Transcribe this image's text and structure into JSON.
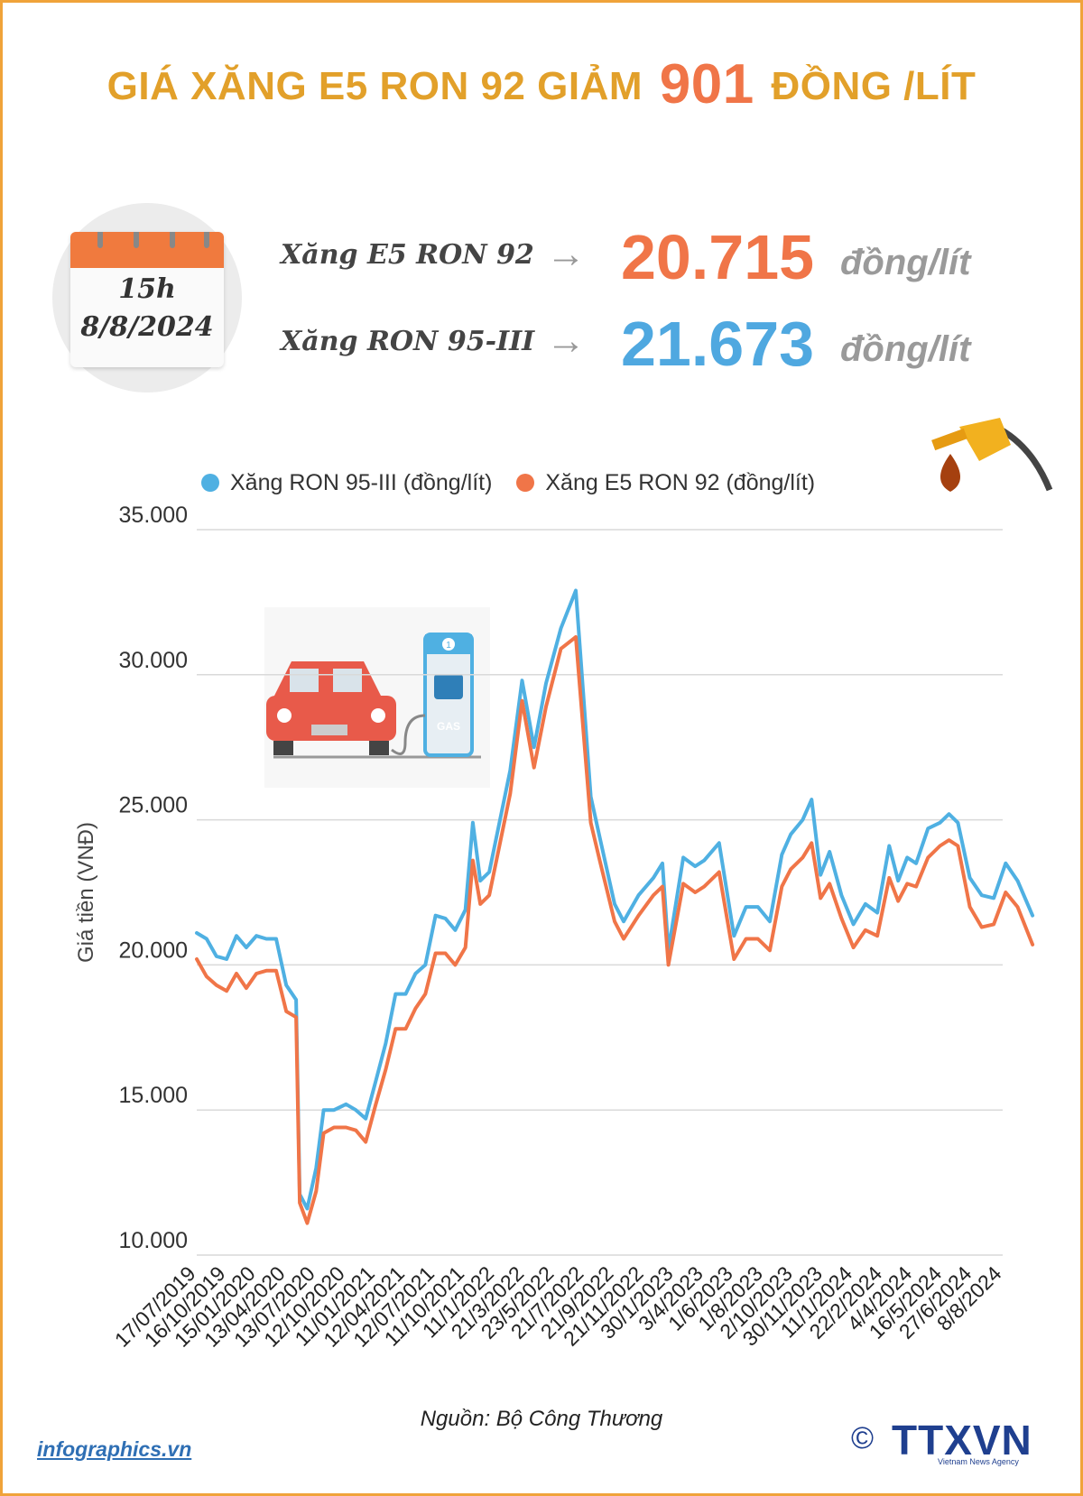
{
  "title": {
    "prefix": "GIÁ XĂNG E5 RON 92 GIẢM",
    "amount": "901",
    "suffix": "ĐỒNG /LÍT"
  },
  "calendar": {
    "time": "15h",
    "date": "8/8/2024"
  },
  "prices": [
    {
      "label": "Xăng E5 RON 92",
      "value": "20.715",
      "unit": "đồng/lít",
      "color": "#f07548"
    },
    {
      "label": "Xăng RON 95-III",
      "value": "21.673",
      "unit": "đồng/lít",
      "color": "#4fa8e0"
    }
  ],
  "icons": {
    "arrow": "right-arrow-icon",
    "calendar": "calendar-icon",
    "fuel_nozzle": "fuel-nozzle-icon",
    "car_pump": "car-at-gas-pump-icon"
  },
  "pump_label": "GAS",
  "pump_number": "1",
  "chart_data": {
    "type": "line",
    "ylabel": "Giá tiền (VNĐ)",
    "xlabel": "",
    "ylim": [
      10000,
      35000
    ],
    "yticks": [
      10000,
      15000,
      20000,
      25000,
      30000,
      35000
    ],
    "ytick_labels": [
      "10.000",
      "15.000",
      "20.000",
      "25.000",
      "30.000",
      "35.000"
    ],
    "grid": true,
    "legend_position": "top",
    "x_tick_labels": [
      "17/07/2019",
      "16/10/2019",
      "15/01/2020",
      "13/04/2020",
      "13/07/2020",
      "12/10/2020",
      "11/01/2021",
      "12/04/2021",
      "12/07/2021",
      "11/10/2021",
      "11/1/2022",
      "21/3/2022",
      "23/5/2022",
      "21/7/2022",
      "21/9/2022",
      "21/11/2022",
      "30/1/2023",
      "3/4/2023",
      "1/6/2023",
      "1/8/2023",
      "2/10/2023",
      "30/11/2023",
      "11/1/2024",
      "22/2/2024",
      "4/4/2024",
      "16/5/2024",
      "27/6/2024",
      "8/8/2024"
    ],
    "series": [
      {
        "name": "Xăng RON 95-III (đồng/lít)",
        "color": "#4fb0e2",
        "values": [
          21100,
          20900,
          20300,
          20200,
          21000,
          20600,
          21000,
          20900,
          20900,
          19300,
          18800,
          12100,
          11600,
          13000,
          15000,
          15000,
          15200,
          15000,
          14700,
          16000,
          17300,
          19000,
          19000,
          19700,
          20000,
          21700,
          21600,
          21200,
          21900,
          24900,
          22900,
          23200,
          26700,
          29800,
          27500,
          29700,
          31600,
          32900,
          25800,
          24400,
          22100,
          21500,
          22400,
          23000,
          23500,
          20500,
          23700,
          23400,
          23600,
          24200,
          21000,
          22000,
          22000,
          21500,
          23800,
          24500,
          25000,
          25700,
          23100,
          23900,
          22400,
          21400,
          22100,
          21800,
          24100,
          22900,
          23700,
          23500,
          24700,
          24900,
          25200,
          24900,
          23000,
          22400,
          22300,
          23500,
          22900,
          21700
        ],
        "x": [
          0,
          0.33,
          0.66,
          1,
          1.33,
          1.66,
          2,
          2.33,
          2.66,
          3,
          3.33,
          3.45,
          3.7,
          4,
          4.25,
          4.6,
          5,
          5.33,
          5.66,
          6,
          6.33,
          6.66,
          7,
          7.33,
          7.66,
          8,
          8.33,
          8.66,
          9,
          9.25,
          9.5,
          9.8,
          10.5,
          10.9,
          11.3,
          11.7,
          12.2,
          12.7,
          13.2,
          13.5,
          14,
          14.3,
          14.8,
          15.3,
          15.6,
          15.8,
          16.3,
          16.7,
          17,
          17.5,
          18,
          18.4,
          18.8,
          19.2,
          19.6,
          19.9,
          20.3,
          20.6,
          20.9,
          21.2,
          21.6,
          22,
          22.4,
          22.8,
          23.2,
          23.5,
          23.8,
          24.1,
          24.5,
          24.9,
          25.2,
          25.5,
          25.9,
          26.3,
          26.7,
          27.1,
          27.5,
          28
        ]
      },
      {
        "name": "Xăng E5 RON 92 (đồng/lít)",
        "color": "#f07548",
        "values": [
          20200,
          19600,
          19300,
          19100,
          19700,
          19200,
          19700,
          19800,
          19800,
          18400,
          18200,
          11800,
          11100,
          12200,
          14200,
          14400,
          14400,
          14300,
          13900,
          15200,
          16400,
          17800,
          17800,
          18500,
          19000,
          20400,
          20400,
          20000,
          20600,
          23600,
          22100,
          22400,
          25900,
          29100,
          26800,
          28900,
          30900,
          31300,
          24900,
          23600,
          21500,
          20900,
          21700,
          22400,
          22700,
          20000,
          22800,
          22500,
          22700,
          23200,
          20200,
          20900,
          20900,
          20500,
          22700,
          23300,
          23700,
          24200,
          22300,
          22800,
          21600,
          20600,
          21200,
          21000,
          23000,
          22200,
          22800,
          22700,
          23700,
          24100,
          24300,
          24100,
          22000,
          21300,
          21400,
          22500,
          22000,
          20700
        ],
        "x": [
          0,
          0.33,
          0.66,
          1,
          1.33,
          1.66,
          2,
          2.33,
          2.66,
          3,
          3.33,
          3.45,
          3.7,
          4,
          4.25,
          4.6,
          5,
          5.33,
          5.66,
          6,
          6.33,
          6.66,
          7,
          7.33,
          7.66,
          8,
          8.33,
          8.66,
          9,
          9.25,
          9.5,
          9.8,
          10.5,
          10.9,
          11.3,
          11.7,
          12.2,
          12.7,
          13.2,
          13.5,
          14,
          14.3,
          14.8,
          15.3,
          15.6,
          15.8,
          16.3,
          16.7,
          17,
          17.5,
          18,
          18.4,
          18.8,
          19.2,
          19.6,
          19.9,
          20.3,
          20.6,
          20.9,
          21.2,
          21.6,
          22,
          22.4,
          22.8,
          23.2,
          23.5,
          23.8,
          24.1,
          24.5,
          24.9,
          25.2,
          25.5,
          25.9,
          26.3,
          26.7,
          27.1,
          27.5,
          28
        ]
      }
    ]
  },
  "source": "Nguồn: Bộ Công Thương",
  "site": "infographics.vn",
  "logo": {
    "copyright": "©",
    "name": "TTXVN",
    "subtitle": "Vietnam News Agency"
  }
}
